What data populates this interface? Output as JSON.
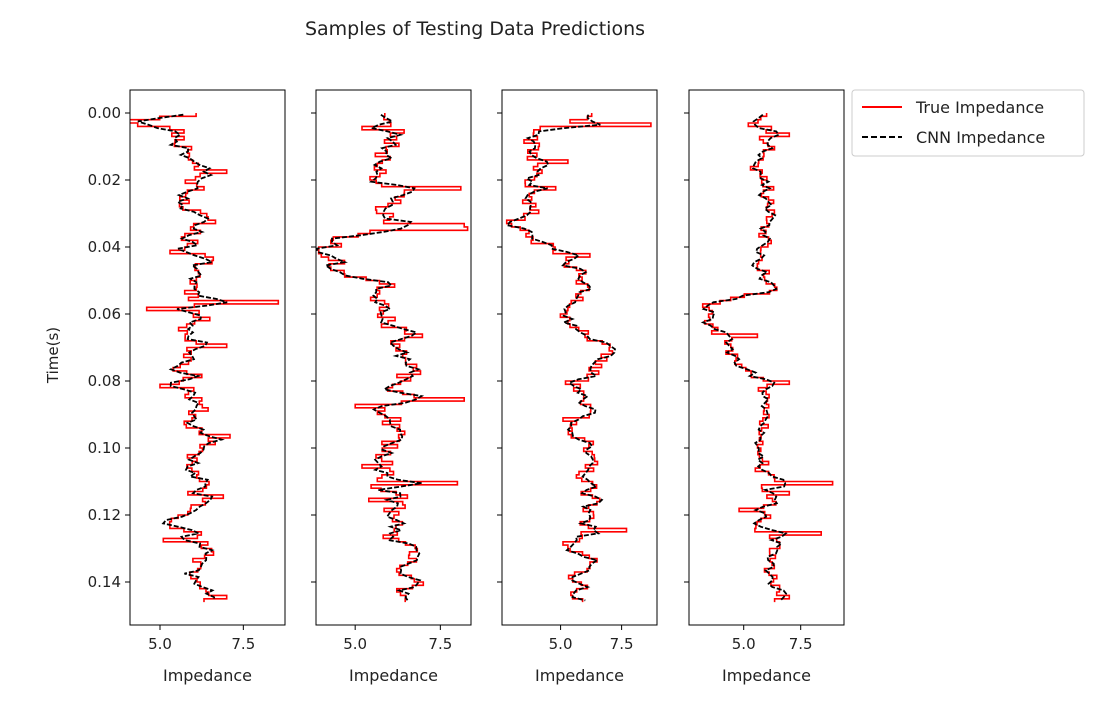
{
  "chart_data": {
    "type": "line",
    "title": "Samples of Testing Data Predictions",
    "ylabel": "Time(s)",
    "xlabel": "Impedance",
    "ylim": [
      0.145,
      0.0
    ],
    "yticks": [
      0.0,
      0.02,
      0.04,
      0.06,
      0.08,
      0.1,
      0.12,
      0.14
    ],
    "ytick_labels": [
      "0.00",
      "0.02",
      "0.04",
      "0.06",
      "0.08",
      "0.10",
      "0.12",
      "0.14"
    ],
    "legend": {
      "placement": "outside-top-right",
      "entries": [
        {
          "label": "True Impedance",
          "style": "solid",
          "color": "#ff0000"
        },
        {
          "label": "CNN Impedance",
          "style": "dashed",
          "color": "#000000"
        }
      ]
    },
    "samples": 146,
    "panels": [
      {
        "xlabel": "Impedance",
        "xlim": [
          4.1,
          8.75
        ],
        "xticks": [
          5.0,
          7.5
        ],
        "xtick_labels": [
          "5.0",
          "7.5"
        ],
        "mean": 6.1,
        "amp": 0.42,
        "seed": 11,
        "anchors": [
          [
            0.0,
            6.3
          ],
          [
            0.002,
            4.3
          ],
          [
            0.004,
            5.4
          ],
          [
            0.012,
            6.1
          ],
          [
            0.04,
            6.05
          ],
          [
            0.06,
            6.2
          ],
          [
            0.08,
            5.9
          ],
          [
            0.1,
            6.15
          ],
          [
            0.12,
            6.0
          ],
          [
            0.14,
            6.3
          ],
          [
            0.145,
            6.4
          ]
        ],
        "spikes": [
          [
            0.017,
            7.0
          ],
          [
            0.041,
            5.3
          ],
          [
            0.056,
            8.55
          ],
          [
            0.058,
            4.6
          ],
          [
            0.069,
            7.0
          ],
          [
            0.081,
            5.0
          ],
          [
            0.096,
            7.1
          ],
          [
            0.114,
            6.9
          ],
          [
            0.127,
            5.1
          ],
          [
            0.144,
            7.0
          ]
        ]
      },
      {
        "xlabel": "Impedance",
        "xlim": [
          3.85,
          8.4
        ],
        "xticks": [
          5.0,
          7.5
        ],
        "xtick_labels": [
          "5.0",
          "7.5"
        ],
        "mean": 6.1,
        "amp": 0.45,
        "seed": 23,
        "anchors": [
          [
            0.0,
            6.1
          ],
          [
            0.01,
            6.0
          ],
          [
            0.03,
            6.0
          ],
          [
            0.036,
            5.2
          ],
          [
            0.038,
            4.4
          ],
          [
            0.041,
            4.0
          ],
          [
            0.045,
            4.3
          ],
          [
            0.048,
            5.1
          ],
          [
            0.05,
            5.7
          ],
          [
            0.06,
            6.3
          ],
          [
            0.067,
            6.6
          ],
          [
            0.08,
            6.2
          ],
          [
            0.1,
            6.0
          ],
          [
            0.12,
            6.1
          ],
          [
            0.14,
            6.3
          ],
          [
            0.145,
            6.7
          ]
        ],
        "spikes": [
          [
            0.004,
            5.2
          ],
          [
            0.022,
            8.1
          ],
          [
            0.033,
            8.2
          ],
          [
            0.034,
            8.3
          ],
          [
            0.085,
            8.2
          ],
          [
            0.087,
            5.0
          ],
          [
            0.105,
            5.2
          ],
          [
            0.11,
            8.0
          ],
          [
            0.115,
            5.4
          ],
          [
            0.14,
            7.0
          ]
        ]
      },
      {
        "xlabel": "Impedance",
        "xlim": [
          2.6,
          8.95
        ],
        "xticks": [
          5.0,
          7.5
        ],
        "xtick_labels": [
          "5.0",
          "7.5"
        ],
        "mean": 5.9,
        "amp": 0.45,
        "seed": 37,
        "anchors": [
          [
            0.0,
            6.5
          ],
          [
            0.005,
            4.5
          ],
          [
            0.01,
            4.0
          ],
          [
            0.02,
            3.9
          ],
          [
            0.03,
            3.6
          ],
          [
            0.033,
            2.9
          ],
          [
            0.038,
            4.0
          ],
          [
            0.042,
            5.5
          ],
          [
            0.05,
            5.8
          ],
          [
            0.06,
            5.5
          ],
          [
            0.068,
            6.6
          ],
          [
            0.08,
            6.1
          ],
          [
            0.1,
            5.9
          ],
          [
            0.12,
            6.0
          ],
          [
            0.14,
            5.9
          ],
          [
            0.145,
            6.1
          ]
        ],
        "spikes": [
          [
            0.003,
            8.7
          ],
          [
            0.008,
            3.5
          ],
          [
            0.014,
            5.3
          ],
          [
            0.022,
            4.8
          ],
          [
            0.042,
            6.2
          ],
          [
            0.08,
            5.2
          ],
          [
            0.091,
            5.1
          ],
          [
            0.124,
            7.7
          ],
          [
            0.128,
            5.1
          ],
          [
            0.135,
            6.2
          ]
        ]
      },
      {
        "xlabel": "Impedance",
        "xlim": [
          2.6,
          9.4
        ],
        "xticks": [
          5.0,
          7.5
        ],
        "xtick_labels": [
          "5.0",
          "7.5"
        ],
        "mean": 6.0,
        "amp": 0.4,
        "seed": 53,
        "anchors": [
          [
            0.0,
            6.2
          ],
          [
            0.01,
            6.1
          ],
          [
            0.03,
            6.15
          ],
          [
            0.045,
            6.2
          ],
          [
            0.052,
            6.4
          ],
          [
            0.056,
            4.0
          ],
          [
            0.06,
            3.5
          ],
          [
            0.065,
            3.8
          ],
          [
            0.07,
            4.4
          ],
          [
            0.075,
            4.5
          ],
          [
            0.08,
            5.9
          ],
          [
            0.1,
            6.05
          ],
          [
            0.12,
            5.9
          ],
          [
            0.14,
            6.3
          ],
          [
            0.145,
            6.4
          ]
        ],
        "spikes": [
          [
            0.003,
            5.2
          ],
          [
            0.006,
            7.0
          ],
          [
            0.016,
            5.3
          ],
          [
            0.057,
            3.2
          ],
          [
            0.066,
            5.6
          ],
          [
            0.08,
            7.0
          ],
          [
            0.11,
            8.9
          ],
          [
            0.113,
            7.0
          ],
          [
            0.118,
            4.8
          ],
          [
            0.125,
            8.4
          ],
          [
            0.144,
            7.0
          ]
        ]
      }
    ]
  }
}
